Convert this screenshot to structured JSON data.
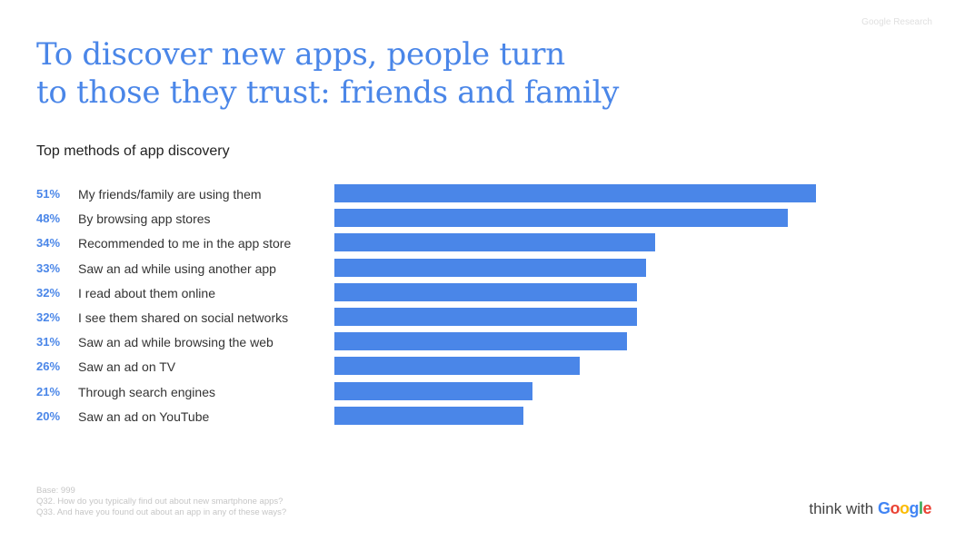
{
  "header": {
    "source_tag": "Google Research",
    "title_line1": "To discover new apps, people turn",
    "title_line2": "to those they trust: friends and family",
    "subtitle": "Top methods of app discovery"
  },
  "colors": {
    "accent": "#4a86e8",
    "bar": "#4a86e8",
    "text": "#333333",
    "muted": "#c6c6c6"
  },
  "chart_data": {
    "type": "bar",
    "orientation": "horizontal",
    "title": "Top methods of app discovery",
    "unit": "%",
    "xlim": [
      0,
      100
    ],
    "grid": false,
    "categories": [
      "My friends/family are using them",
      "By browsing app stores",
      "Recommended to me in the app store",
      "Saw an ad while using another app",
      "I read about them online",
      "I see them shared on social networks",
      "Saw an ad while browsing the web",
      "Saw an ad on TV",
      "Through search engines",
      "Saw an ad on YouTube"
    ],
    "values": [
      51,
      48,
      34,
      33,
      32,
      32,
      31,
      26,
      21,
      20
    ],
    "value_labels": [
      "51%",
      "48%",
      "34%",
      "33%",
      "32%",
      "32%",
      "31%",
      "26%",
      "21%",
      "20%"
    ]
  },
  "footer": {
    "base": "Base: 999",
    "q32": "Q32. How do you typically find out about new smartphone apps?",
    "q33": "Q33. And have you found out about an app in any of these ways?",
    "brand_prefix": "think with",
    "brand_name": "Google"
  }
}
